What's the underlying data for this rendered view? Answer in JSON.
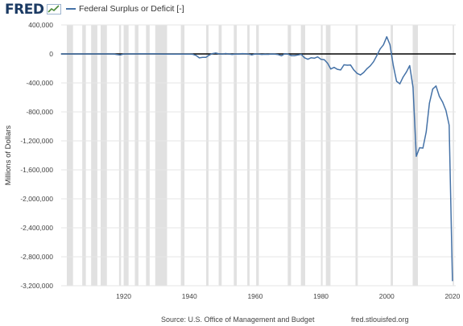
{
  "header": {
    "logo_text": "FRED",
    "logo_icon": "chart-icon",
    "legend_label": "Federal Surplus or Deficit [-]"
  },
  "footer": {
    "source": "Source: U.S. Office of Management and Budget",
    "site": "fred.stlouisfed.org"
  },
  "chart_data": {
    "type": "line",
    "title": "",
    "xlabel": "",
    "ylabel": "Millions of Dollars",
    "ylim": [
      -3200000,
      400000
    ],
    "xlim": [
      1901,
      2021
    ],
    "y_ticks": [
      400000,
      0,
      -400000,
      -800000,
      -1200000,
      -1600000,
      -2000000,
      -2400000,
      -2800000,
      -3200000
    ],
    "y_tick_labels": [
      "400,000",
      "0",
      "-400,000",
      "-800,000",
      "-1,200,000",
      "-1,600,000",
      "-2,000,000",
      "-2,400,000",
      "-2,800,000",
      "-3,200,000"
    ],
    "x_ticks": [
      1920,
      1940,
      1960,
      1980,
      2000,
      2020
    ],
    "x_tick_labels": [
      "1920",
      "1940",
      "1960",
      "1980",
      "2000",
      "2020"
    ],
    "grid": true,
    "zero_line": true,
    "series_color": "#4572a7",
    "recession_color": "#e1e1e1",
    "recessions": [
      [
        1902.7,
        1904.6
      ],
      [
        1907.4,
        1908.5
      ],
      [
        1910.1,
        1912.0
      ],
      [
        1913.0,
        1914.9
      ],
      [
        1918.6,
        1919.2
      ],
      [
        1920.0,
        1921.5
      ],
      [
        1923.4,
        1924.5
      ],
      [
        1926.8,
        1927.9
      ],
      [
        1929.6,
        1933.2
      ],
      [
        1937.4,
        1938.5
      ],
      [
        1945.1,
        1945.8
      ],
      [
        1948.9,
        1949.8
      ],
      [
        1953.5,
        1954.4
      ],
      [
        1957.6,
        1958.3
      ],
      [
        1960.3,
        1961.1
      ],
      [
        1969.9,
        1970.9
      ],
      [
        1973.9,
        1975.2
      ],
      [
        1980.0,
        1980.5
      ],
      [
        1981.5,
        1982.9
      ],
      [
        1990.5,
        1991.2
      ],
      [
        2001.2,
        2001.9
      ],
      [
        2007.9,
        2009.5
      ],
      [
        2020.1,
        2020.4
      ]
    ],
    "series": [
      {
        "name": "Federal Surplus or Deficit [-]",
        "x": [
          1901,
          1905,
          1910,
          1915,
          1917,
          1918,
          1919,
          1920,
          1925,
          1930,
          1931,
          1932,
          1933,
          1935,
          1937,
          1939,
          1940,
          1941,
          1942,
          1943,
          1944,
          1945,
          1946,
          1947,
          1948,
          1949,
          1950,
          1951,
          1952,
          1953,
          1954,
          1955,
          1956,
          1957,
          1958,
          1959,
          1960,
          1961,
          1962,
          1963,
          1964,
          1965,
          1966,
          1967,
          1968,
          1969,
          1970,
          1971,
          1972,
          1973,
          1974,
          1975,
          1976,
          1977,
          1978,
          1979,
          1980,
          1981,
          1982,
          1983,
          1984,
          1985,
          1986,
          1987,
          1988,
          1989,
          1990,
          1991,
          1992,
          1993,
          1994,
          1995,
          1996,
          1997,
          1998,
          1999,
          2000,
          2001,
          2002,
          2003,
          2004,
          2005,
          2006,
          2007,
          2008,
          2009,
          2010,
          2011,
          2012,
          2013,
          2014,
          2015,
          2016,
          2017,
          2018,
          2019,
          2020
        ],
        "values": [
          0,
          0,
          0,
          0,
          -1000,
          -9000,
          -13000,
          -1000,
          1000,
          700,
          -500,
          -2700,
          -2600,
          -2800,
          -2200,
          -2800,
          -2900,
          -4900,
          -20500,
          -54600,
          -47600,
          -47600,
          -15900,
          4000,
          11800,
          600,
          -3100,
          6100,
          -1500,
          -6500,
          -1200,
          -3000,
          3900,
          3400,
          -2800,
          -12800,
          300,
          -3300,
          -7100,
          -4800,
          -5900,
          -1400,
          -3700,
          -8600,
          -25200,
          3200,
          -2800,
          -23000,
          -23400,
          -14900,
          -6100,
          -53200,
          -73700,
          -53700,
          -59200,
          -40700,
          -73800,
          -79000,
          -128000,
          -207800,
          -185400,
          -212300,
          -221200,
          -149700,
          -155200,
          -152600,
          -221000,
          -269200,
          -290300,
          -255100,
          -203200,
          -164000,
          -107400,
          -21900,
          69300,
          125600,
          236200,
          128200,
          -157800,
          -377600,
          -412700,
          -318300,
          -248200,
          -160700,
          -458600,
          -1412700,
          -1294400,
          -1299600,
          -1076600,
          -679800,
          -484600,
          -441960,
          -584700,
          -665400,
          -779100,
          -983600,
          -3131900
        ]
      }
    ]
  }
}
